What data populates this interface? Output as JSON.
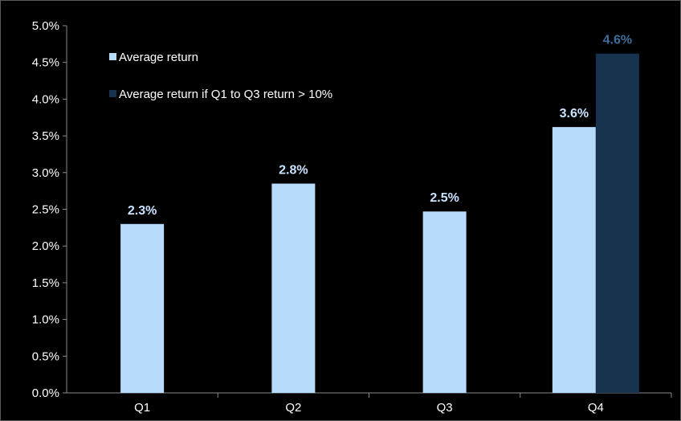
{
  "chart_data": {
    "type": "bar",
    "categories": [
      "Q1",
      "Q2",
      "Q3",
      "Q4"
    ],
    "ylim": [
      0,
      5.0
    ],
    "yticks": [
      "0.0%",
      "0.5%",
      "1.0%",
      "1.5%",
      "2.0%",
      "2.5%",
      "3.0%",
      "3.5%",
      "4.0%",
      "4.5%",
      "5.0%"
    ],
    "grid": false,
    "legend_position": "top-left",
    "series": [
      {
        "name": "Average return",
        "color": "#b7dbfb",
        "label_color": "#c9e3ff",
        "values": [
          2.3,
          2.85,
          2.47,
          3.62
        ],
        "labels": [
          "2.3%",
          "2.8%",
          "2.5%",
          "3.6%"
        ]
      },
      {
        "name": "Average return if Q1 to Q3 return > 10%",
        "color": "#17324d",
        "label_color": "#3d6f9c",
        "values": [
          null,
          null,
          null,
          4.62
        ],
        "labels": [
          null,
          null,
          null,
          "4.6%"
        ]
      }
    ]
  }
}
